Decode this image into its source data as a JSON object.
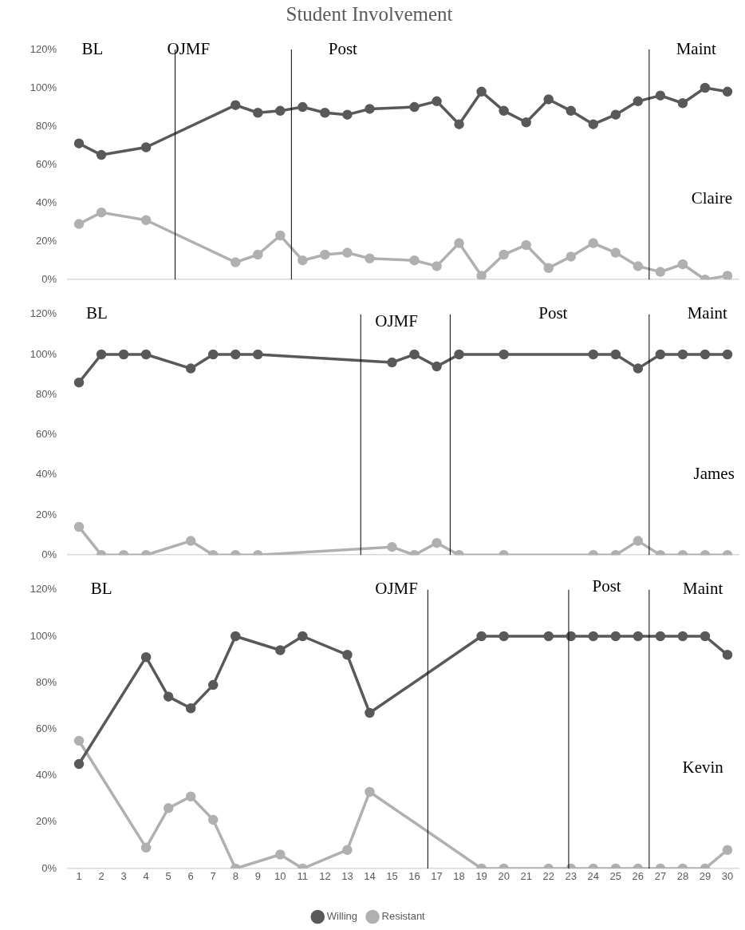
{
  "chart_data": [
    {
      "type": "line",
      "title": "Student Involvement",
      "xlim": [
        0.5,
        30.5
      ],
      "xticks": [
        1,
        2,
        3,
        4,
        5,
        6,
        7,
        8,
        9,
        10,
        11,
        12,
        13,
        14,
        15,
        16,
        17,
        18,
        19,
        20,
        21,
        22,
        23,
        24,
        25,
        26,
        27,
        28,
        29,
        30
      ],
      "ylim": [
        0,
        120
      ],
      "yticks": [
        {
          "value": 0,
          "label": "0%"
        },
        {
          "value": 20,
          "label": "20%"
        },
        {
          "value": 40,
          "label": "40%"
        },
        {
          "value": 60,
          "label": "60%"
        },
        {
          "value": 80,
          "label": "80%"
        },
        {
          "value": 100,
          "label": "100%"
        },
        {
          "value": 120,
          "label": "120%"
        }
      ],
      "tick_labels": "y",
      "grid": false,
      "legend": false,
      "marker": "circle",
      "line_style": "solid",
      "series": [
        {
          "color": "#595959",
          "x": [
            1,
            2,
            4,
            8,
            9,
            10,
            11,
            12,
            13,
            14,
            16,
            17,
            18,
            19,
            20,
            21,
            22,
            23,
            24,
            25,
            26,
            27,
            28,
            29,
            30
          ],
          "values": [
            71,
            65,
            69,
            91,
            87,
            88,
            90,
            87,
            86,
            89,
            90,
            93,
            81,
            98,
            88,
            82,
            94,
            88,
            81,
            86,
            93,
            96,
            92,
            100,
            98
          ]
        },
        {
          "color": "#b0b0b0",
          "x": [
            1,
            2,
            4,
            8,
            9,
            10,
            11,
            12,
            13,
            14,
            16,
            17,
            18,
            19,
            20,
            21,
            22,
            23,
            24,
            25,
            26,
            27,
            28,
            29,
            30
          ],
          "values": [
            29,
            35,
            31,
            9,
            13,
            23,
            10,
            13,
            14,
            11,
            10,
            7,
            19,
            2,
            13,
            18,
            6,
            12,
            19,
            14,
            7,
            4,
            8,
            0,
            2
          ]
        }
      ],
      "ref_lines": [
        {
          "axis": "x",
          "value": 5.3,
          "color": "#000000"
        },
        {
          "axis": "x",
          "value": 10.5,
          "color": "#000000"
        },
        {
          "axis": "x",
          "value": 26.5,
          "color": "#000000"
        }
      ],
      "annotations": [
        "BL",
        "OJMF",
        "Post",
        "Maint",
        "Claire"
      ]
    },
    {
      "type": "line",
      "xlim": [
        0.5,
        30.5
      ],
      "xticks": [
        1,
        2,
        3,
        4,
        5,
        6,
        7,
        8,
        9,
        10,
        11,
        12,
        13,
        14,
        15,
        16,
        17,
        18,
        19,
        20,
        21,
        22,
        23,
        24,
        25,
        26,
        27,
        28,
        29,
        30
      ],
      "ylim": [
        0,
        120
      ],
      "yticks": [
        {
          "value": 0,
          "label": "0%"
        },
        {
          "value": 20,
          "label": "20%"
        },
        {
          "value": 40,
          "label": "40%"
        },
        {
          "value": 60,
          "label": "60%"
        },
        {
          "value": 80,
          "label": "80%"
        },
        {
          "value": 100,
          "label": "100%"
        },
        {
          "value": 120,
          "label": "120%"
        }
      ],
      "tick_labels": "y",
      "grid": false,
      "legend": false,
      "marker": "circle",
      "line_style": "solid",
      "series": [
        {
          "color": "#595959",
          "x": [
            1,
            2,
            3,
            4,
            6,
            7,
            8,
            9,
            15,
            16,
            17,
            18,
            20,
            24,
            25,
            26,
            27,
            28,
            29,
            30
          ],
          "values": [
            86,
            100,
            100,
            100,
            93,
            100,
            100,
            100,
            96,
            100,
            94,
            100,
            100,
            100,
            100,
            93,
            100,
            100,
            100,
            100
          ]
        },
        {
          "color": "#b0b0b0",
          "x": [
            1,
            2,
            3,
            4,
            6,
            7,
            8,
            9,
            15,
            16,
            17,
            18,
            20,
            24,
            25,
            26,
            27,
            28,
            29,
            30
          ],
          "values": [
            14,
            0,
            0,
            0,
            7,
            0,
            0,
            0,
            4,
            0,
            6,
            0,
            0,
            0,
            0,
            7,
            0,
            0,
            0,
            0
          ]
        }
      ],
      "ref_lines": [
        {
          "axis": "x",
          "value": 13.6,
          "color": "#000000"
        },
        {
          "axis": "x",
          "value": 17.6,
          "color": "#000000"
        },
        {
          "axis": "x",
          "value": 26.5,
          "color": "#000000"
        }
      ],
      "annotations": [
        "BL",
        "OJMF",
        "Post",
        "Maint",
        "James"
      ]
    },
    {
      "type": "line",
      "xlim": [
        0.5,
        30.5
      ],
      "xticks": [
        1,
        2,
        3,
        4,
        5,
        6,
        7,
        8,
        9,
        10,
        11,
        12,
        13,
        14,
        15,
        16,
        17,
        18,
        19,
        20,
        21,
        22,
        23,
        24,
        25,
        26,
        27,
        28,
        29,
        30
      ],
      "ylim": [
        0,
        120
      ],
      "yticks": [
        {
          "value": 0,
          "label": "0%"
        },
        {
          "value": 20,
          "label": "20%"
        },
        {
          "value": 40,
          "label": "40%"
        },
        {
          "value": 60,
          "label": "60%"
        },
        {
          "value": 80,
          "label": "80%"
        },
        {
          "value": 100,
          "label": "100%"
        },
        {
          "value": 120,
          "label": "120%"
        }
      ],
      "grid": false,
      "legend": "bottom",
      "marker": "circle",
      "line_style": "solid",
      "series": [
        {
          "name": "Willing",
          "color": "#595959",
          "x": [
            1,
            4,
            5,
            6,
            7,
            8,
            10,
            11,
            13,
            14,
            19,
            20,
            22,
            23,
            24,
            25,
            26,
            27,
            28,
            29,
            30
          ],
          "values": [
            45,
            91,
            74,
            69,
            79,
            100,
            94,
            100,
            92,
            67,
            100,
            100,
            100,
            100,
            100,
            100,
            100,
            100,
            100,
            100,
            92
          ]
        },
        {
          "name": "Resistant",
          "color": "#b0b0b0",
          "x": [
            1,
            4,
            5,
            6,
            7,
            8,
            10,
            11,
            13,
            14,
            19,
            20,
            22,
            23,
            24,
            25,
            26,
            27,
            28,
            29,
            30
          ],
          "values": [
            55,
            9,
            26,
            31,
            21,
            0,
            6,
            0,
            8,
            33,
            0,
            0,
            0,
            0,
            0,
            0,
            0,
            0,
            0,
            0,
            8
          ]
        }
      ],
      "ref_lines": [
        {
          "axis": "x",
          "value": 16.6,
          "color": "#000000"
        },
        {
          "axis": "x",
          "value": 22.9,
          "color": "#000000"
        },
        {
          "axis": "x",
          "value": 26.5,
          "color": "#000000"
        }
      ],
      "annotations": [
        "BL",
        "OJMF",
        "Post",
        "Maint",
        "Kevin"
      ]
    }
  ]
}
